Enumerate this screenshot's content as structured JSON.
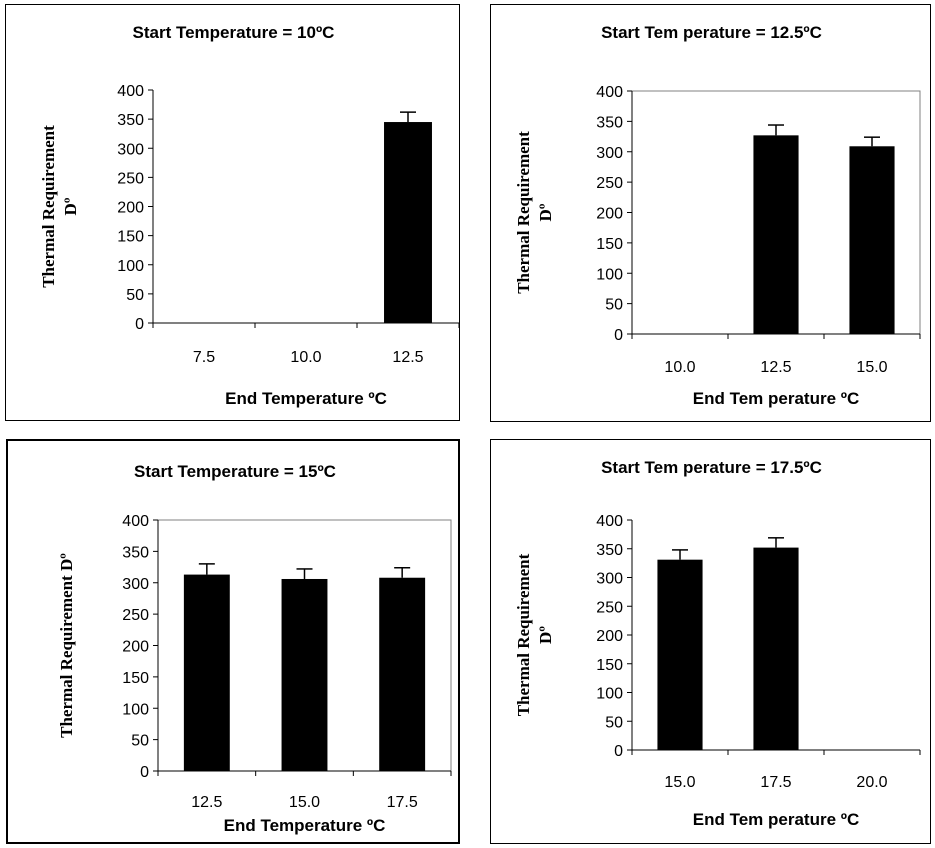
{
  "chart_data": [
    {
      "type": "bar",
      "title": "Start Temperature = 10ºC",
      "xlabel": "End Temperature ºC",
      "ylabel": [
        "Thermal Requirement",
        "Dº"
      ],
      "categories": [
        "7.5",
        "10.0",
        "12.5"
      ],
      "values": [
        0,
        0,
        345
      ],
      "errors": [
        0,
        0,
        17
      ],
      "ylim": [
        0,
        400
      ],
      "yticks": [
        "0",
        "50",
        "100",
        "150",
        "200",
        "250",
        "300",
        "350",
        "400"
      ],
      "plot_frame": false,
      "bar_color": "#000000"
    },
    {
      "type": "bar",
      "title": "Start Tem perature = 12.5ºC",
      "xlabel": "End Tem perature ºC",
      "ylabel": [
        "Thermal Requirement",
        "Dº"
      ],
      "categories": [
        "10.0",
        "12.5",
        "15.0"
      ],
      "values": [
        0,
        327,
        309
      ],
      "errors": [
        0,
        17,
        15
      ],
      "ylim": [
        0,
        400
      ],
      "yticks": [
        "0",
        "50",
        "100",
        "150",
        "200",
        "250",
        "300",
        "350",
        "400"
      ],
      "plot_frame": true,
      "bar_color": "#000000"
    },
    {
      "type": "bar",
      "title": "Start Temperature = 15ºC",
      "xlabel": "End Temperature ºC",
      "ylabel": [
        "Thermal Requirement Dº"
      ],
      "categories": [
        "12.5",
        "15.0",
        "17.5"
      ],
      "values": [
        313,
        306,
        308
      ],
      "errors": [
        17,
        16,
        16
      ],
      "ylim": [
        0,
        400
      ],
      "yticks": [
        "0",
        "50",
        "100",
        "150",
        "200",
        "250",
        "300",
        "350",
        "400"
      ],
      "plot_frame": true,
      "bar_color": "#000000"
    },
    {
      "type": "bar",
      "title": "Start Tem perature = 17.5ºC",
      "xlabel": "End Tem perature ºC",
      "ylabel": [
        "Thermal Requirement",
        "Dº"
      ],
      "categories": [
        "15.0",
        "17.5",
        "20.0"
      ],
      "values": [
        331,
        352,
        0
      ],
      "errors": [
        17,
        17,
        0
      ],
      "ylim": [
        0,
        400
      ],
      "yticks": [
        "0",
        "50",
        "100",
        "150",
        "200",
        "250",
        "300",
        "350",
        "400"
      ],
      "plot_frame": false,
      "bar_color": "#000000"
    }
  ]
}
